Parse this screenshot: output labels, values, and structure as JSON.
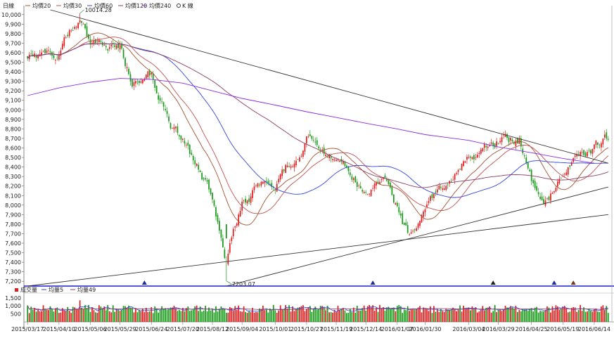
{
  "header": {
    "title": "日線",
    "legend": [
      {
        "label": "均價20",
        "color": "#a0522d"
      },
      {
        "label": "均價30",
        "color": "#c05050"
      },
      {
        "label": "均價60",
        "color": "#3344dd"
      },
      {
        "label": "均價120",
        "color": "#8b3a62"
      },
      {
        "label": "均價240",
        "color": "#8a2be2"
      },
      {
        "label": "K 線",
        "color": "#333333"
      }
    ]
  },
  "volume_header": {
    "legend": [
      {
        "label": "成交量",
        "color": "#e02020"
      },
      {
        "label": "均量5",
        "color": "#3344dd"
      },
      {
        "label": "均量49",
        "color": "#8b3a62"
      }
    ]
  },
  "colors": {
    "up": "#e02020",
    "down": "#1a9a1a",
    "trendline": "#333333",
    "baseline": "#1f1fcf",
    "marker_blue": "#1f2f9f",
    "marker_dark": "#222222",
    "marker_brown": "#7a3a1a"
  },
  "chart_data": [
    {
      "type": "candlestick",
      "title": "日線",
      "y_ticks": [
        "10,000",
        "9,900",
        "9,800",
        "9,700",
        "9,600",
        "9,500",
        "9,400",
        "9,300",
        "9,200",
        "9,100",
        "9,000",
        "8,900",
        "8,800",
        "8,700",
        "8,600",
        "8,500",
        "8,400",
        "8,300",
        "8,200",
        "8,100",
        "8,000",
        "7,900",
        "7,800",
        "7,700",
        "7,600",
        "7,500",
        "7,400",
        "7,300",
        "7,200"
      ],
      "ylim": [
        7150,
        10050
      ],
      "x_date_labels": [
        "2015/03/17",
        "2015/04/10",
        "2015/05/06",
        "2015/05/29",
        "2015/06/24",
        "2015/07/20",
        "2015/08/12",
        "2015/09/04",
        "2015/10/01",
        "2015/10/27",
        "2015/11/19",
        "2015/12/14",
        "2016/01/07",
        "2016/01/30",
        "2016/03/04",
        "2016/03/29",
        "2016/04/25",
        "2016/05/19",
        "2016/06/14"
      ],
      "annotations": [
        {
          "text": "10014.28",
          "value": 10014.28,
          "date": "2015/04/28"
        },
        {
          "text": "7203.07",
          "value": 7203.07,
          "date": "2015/08/24"
        }
      ],
      "series": [
        {
          "name": "K 線",
          "kind": "candlestick",
          "anchors": [
            {
              "date": "2015/03/17",
              "close": 9550
            },
            {
              "date": "2015/04/10",
              "close": 9620
            },
            {
              "date": "2015/04/28",
              "close": 9980
            },
            {
              "date": "2015/05/06",
              "close": 9700
            },
            {
              "date": "2015/05/29",
              "close": 9650
            },
            {
              "date": "2015/06/09",
              "close": 9300
            },
            {
              "date": "2015/06/24",
              "close": 9350
            },
            {
              "date": "2015/07/09",
              "close": 8800
            },
            {
              "date": "2015/07/20",
              "close": 8650
            },
            {
              "date": "2015/08/12",
              "close": 8100
            },
            {
              "date": "2015/08/24",
              "close": 7400
            },
            {
              "date": "2015/09/04",
              "close": 8050
            },
            {
              "date": "2015/09/24",
              "close": 8250
            },
            {
              "date": "2015/10/01",
              "close": 8200
            },
            {
              "date": "2015/10/27",
              "close": 8700
            },
            {
              "date": "2015/11/05",
              "close": 8550
            },
            {
              "date": "2015/11/19",
              "close": 8450
            },
            {
              "date": "2015/12/14",
              "close": 8150
            },
            {
              "date": "2015/12/28",
              "close": 8300
            },
            {
              "date": "2016/01/07",
              "close": 8000
            },
            {
              "date": "2016/01/18",
              "close": 7650
            },
            {
              "date": "2016/01/30",
              "close": 8050
            },
            {
              "date": "2016/03/04",
              "close": 8500
            },
            {
              "date": "2016/03/29",
              "close": 8700
            },
            {
              "date": "2016/04/14",
              "close": 8700
            },
            {
              "date": "2016/04/25",
              "close": 8250
            },
            {
              "date": "2016/05/06",
              "close": 8050
            },
            {
              "date": "2016/05/19",
              "close": 8300
            },
            {
              "date": "2016/06/03",
              "close": 8550
            },
            {
              "date": "2016/06/14",
              "close": 8600
            },
            {
              "date": "2016/06/24",
              "close": 8700
            }
          ]
        },
        {
          "name": "均價20",
          "kind": "moving_average",
          "window": 20
        },
        {
          "name": "均價30",
          "kind": "moving_average",
          "window": 30
        },
        {
          "name": "均價60",
          "kind": "moving_average",
          "window": 60
        },
        {
          "name": "均價120",
          "kind": "moving_average",
          "window": 120
        },
        {
          "name": "均價240",
          "kind": "moving_average",
          "window": 240,
          "anchors": [
            {
              "date": "2015/03/17",
              "value": 9150
            },
            {
              "date": "2015/04/10",
              "value": 9230
            },
            {
              "date": "2015/05/06",
              "value": 9290
            },
            {
              "date": "2015/05/29",
              "value": 9330
            },
            {
              "date": "2015/06/24",
              "value": 9320
            },
            {
              "date": "2015/07/20",
              "value": 9280
            },
            {
              "date": "2015/08/12",
              "value": 9200
            },
            {
              "date": "2015/09/04",
              "value": 9120
            },
            {
              "date": "2015/10/01",
              "value": 9050
            },
            {
              "date": "2015/10/27",
              "value": 8980
            },
            {
              "date": "2015/11/19",
              "value": 8920
            },
            {
              "date": "2015/12/14",
              "value": 8860
            },
            {
              "date": "2016/01/07",
              "value": 8800
            },
            {
              "date": "2016/01/30",
              "value": 8740
            },
            {
              "date": "2016/03/04",
              "value": 8680
            },
            {
              "date": "2016/03/29",
              "value": 8610
            },
            {
              "date": "2016/04/25",
              "value": 8550
            },
            {
              "date": "2016/05/19",
              "value": 8490
            },
            {
              "date": "2016/06/14",
              "value": 8440
            }
          ]
        }
      ],
      "trendlines": [
        {
          "from": {
            "date": "2015/04/03",
            "value": 10050
          },
          "to": {
            "date": "2016/06/24",
            "value": 8440
          }
        },
        {
          "from": {
            "date": "2015/03/17",
            "value": 7150
          },
          "to": {
            "date": "2016/06/24",
            "value": 7900
          }
        },
        {
          "from": {
            "date": "2015/08/24",
            "value": 7150
          },
          "to": {
            "date": "2016/06/24",
            "value": 8190
          }
        }
      ],
      "markers": [
        {
          "date": "2015/06/18",
          "color": "blue"
        },
        {
          "date": "2015/12/18",
          "color": "blue"
        },
        {
          "date": "2016/03/24",
          "color": "dark"
        },
        {
          "date": "2016/05/12",
          "color": "blue"
        },
        {
          "date": "2016/05/27",
          "color": "brown"
        }
      ]
    },
    {
      "type": "bar",
      "title": "成交量",
      "y_ticks": [
        "1,500",
        "1,000",
        "500"
      ],
      "ylim": [
        0,
        1800
      ],
      "series": [
        {
          "name": "成交量",
          "typical": 850,
          "peak": {
            "date": "2015/04/28",
            "value": 1350
          }
        },
        {
          "name": "均量5"
        },
        {
          "name": "均量49"
        }
      ]
    }
  ]
}
